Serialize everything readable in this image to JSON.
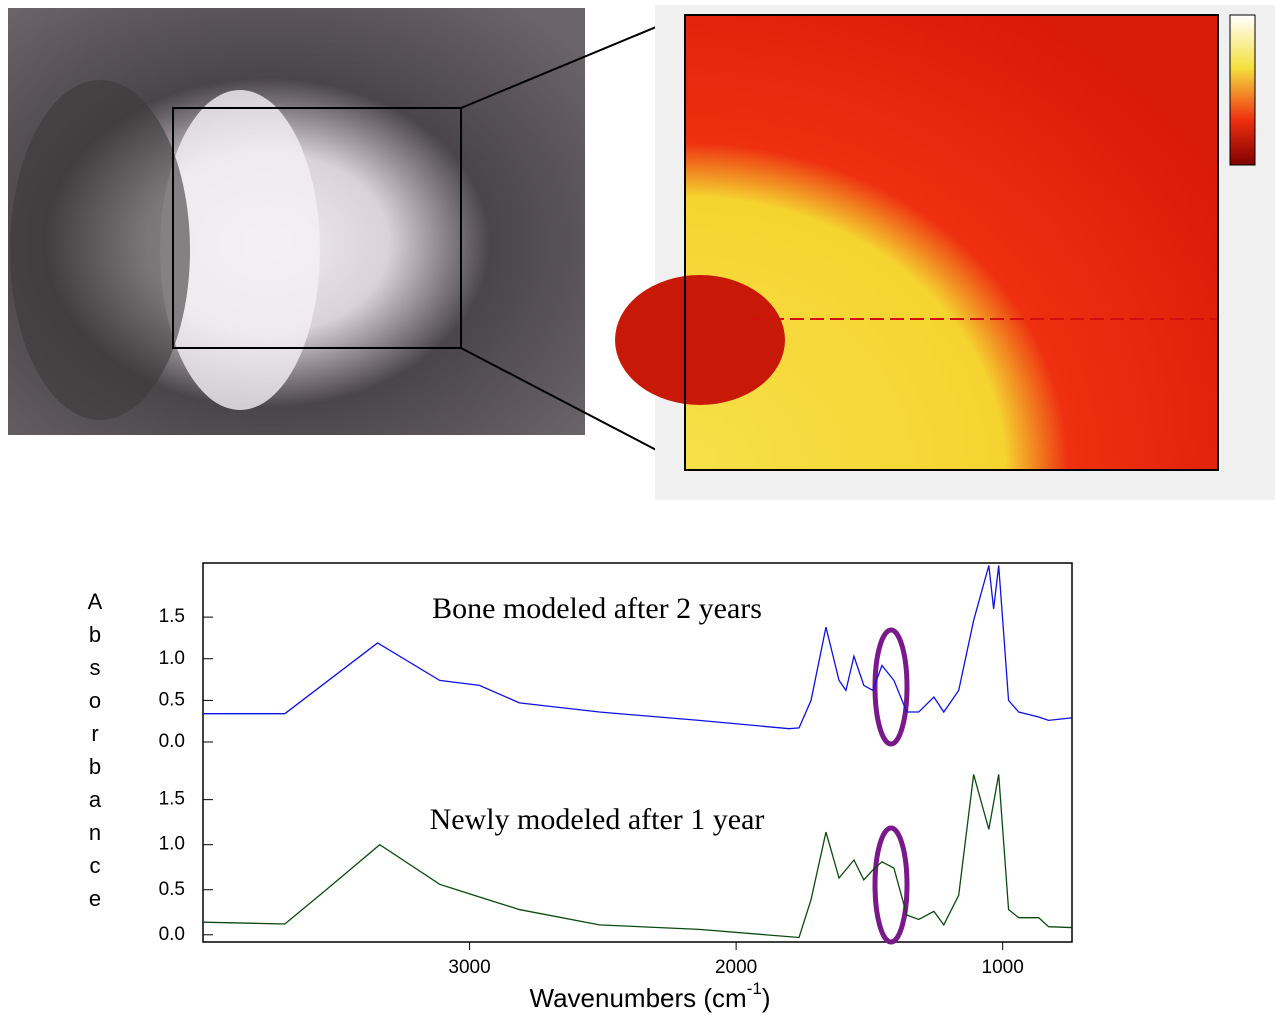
{
  "chart_data": {
    "type": "line",
    "ylabel": "Absorbance",
    "xlabel": [
      "Wavenumbers (cm",
      "-1",
      ")"
    ],
    "xlim": [
      4000,
      740
    ],
    "xticks": [
      3000,
      2000,
      1000
    ],
    "panels": [
      {
        "title": "Bone modeled after 2 years",
        "color": "#1010e0",
        "ylim": [
          -0.12,
          2.15
        ],
        "yticks": [
          {
            "value": 0,
            "label": "0.0"
          },
          {
            "value": 0.5,
            "label": "0.5"
          },
          {
            "value": 1,
            "label": "1.0"
          },
          {
            "value": 1.5,
            "label": "1.5"
          }
        ],
        "x": [
          4000,
          3693,
          3345,
          3112,
          2963,
          2813,
          2513,
          2139,
          1801,
          1764,
          1719,
          1663,
          1614,
          1588,
          1558,
          1521,
          1487,
          1453,
          1408,
          1360,
          1315,
          1258,
          1221,
          1165,
          1109,
          1052,
          1034,
          1015,
          978,
          940,
          865,
          828,
          742
        ],
        "values": [
          0.34,
          0.34,
          1.19,
          0.74,
          0.68,
          0.47,
          0.36,
          0.26,
          0.16,
          0.17,
          0.5,
          1.38,
          0.74,
          0.62,
          1.03,
          0.68,
          0.62,
          0.92,
          0.74,
          0.36,
          0.36,
          0.54,
          0.36,
          0.62,
          1.46,
          2.12,
          1.6,
          2.12,
          0.5,
          0.36,
          0.3,
          0.26,
          0.29
        ]
      },
      {
        "title": "Newly modeled after 1 year",
        "color": "#0a4a10",
        "ylim": [
          -0.08,
          1.94
        ],
        "yticks": [
          {
            "value": 0,
            "label": "0.0"
          },
          {
            "value": 0.5,
            "label": "0.5"
          },
          {
            "value": 1,
            "label": "1.0"
          },
          {
            "value": 1.5,
            "label": "1.5"
          }
        ],
        "x": [
          4000,
          3693,
          3562,
          3449,
          3337,
          3112,
          2963,
          2813,
          2513,
          2139,
          1764,
          1719,
          1663,
          1614,
          1558,
          1521,
          1487,
          1453,
          1408,
          1360,
          1315,
          1258,
          1221,
          1165,
          1109,
          1052,
          1015,
          978,
          940,
          865,
          828,
          742
        ],
        "values": [
          0.14,
          0.12,
          0.44,
          0.72,
          1.0,
          0.56,
          0.42,
          0.28,
          0.11,
          0.06,
          -0.03,
          0.39,
          1.14,
          0.63,
          0.83,
          0.61,
          0.72,
          0.81,
          0.74,
          0.22,
          0.17,
          0.26,
          0.11,
          0.44,
          1.78,
          1.17,
          1.78,
          0.28,
          0.19,
          0.19,
          0.09,
          0.08
        ]
      }
    ]
  }
}
